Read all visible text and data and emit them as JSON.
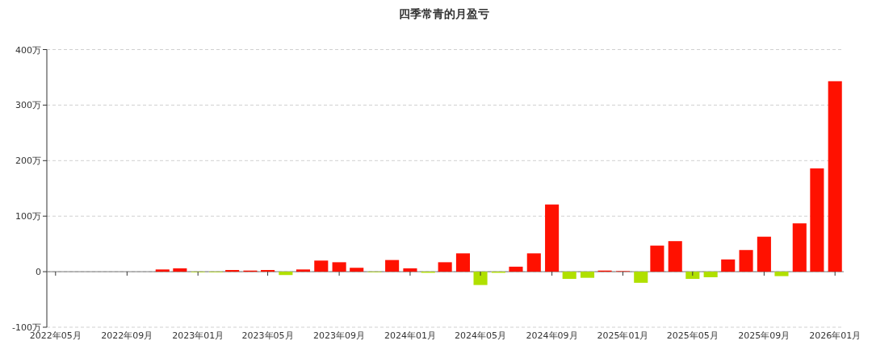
{
  "chart_data": {
    "type": "bar",
    "title": "四季常青的月盈亏",
    "x": [
      "2022-11",
      "2022-12",
      "2023-01",
      "2023-02",
      "2023-03",
      "2023-04",
      "2023-05",
      "2023-06",
      "2023-07",
      "2023-08",
      "2023-09",
      "2023-10",
      "2023-11",
      "2023-12",
      "2024-01",
      "2024-02",
      "2024-03",
      "2024-04",
      "2024-05",
      "2024-06",
      "2024-07",
      "2024-08",
      "2024-09",
      "2024-10",
      "2024-11",
      "2024-12",
      "2025-01",
      "2025-02",
      "2025-03",
      "2025-04",
      "2025-05",
      "2025-06",
      "2025-07",
      "2025-08",
      "2025-09",
      "2025-10",
      "2025-11",
      "2025-12",
      "2026-01"
    ],
    "values": [
      4,
      6,
      -1,
      -1,
      3,
      2,
      3,
      -6,
      4,
      20,
      17,
      7,
      -1,
      21,
      6,
      -2,
      17,
      33,
      -24,
      -2,
      9,
      33,
      121,
      -13,
      -11,
      2,
      1,
      -20,
      47,
      55,
      -13,
      -10,
      22,
      39,
      63,
      -8,
      87,
      186,
      343
    ],
    "colors": [
      "#ff1100",
      "#ff1100",
      "#b0e000",
      "#b0e000",
      "#ff1100",
      "#ff1100",
      "#ff1100",
      "#b0e000",
      "#ff1100",
      "#ff1100",
      "#ff1100",
      "#ff1100",
      "#b0e000",
      "#ff1100",
      "#ff1100",
      "#b0e000",
      "#ff1100",
      "#ff1100",
      "#b0e000",
      "#b0e000",
      "#ff1100",
      "#ff1100",
      "#ff1100",
      "#b0e000",
      "#b0e000",
      "#ff1100",
      "#ff1100",
      "#b0e000",
      "#ff1100",
      "#ff1100",
      "#b0e000",
      "#b0e000",
      "#ff1100",
      "#ff1100",
      "#ff1100",
      "#b0e000",
      "#ff1100",
      "#ff1100",
      "#ff1100"
    ],
    "xlim": [
      "2022-04-16",
      "2026-01-16"
    ],
    "xticks": [
      {
        "value": "2022-05",
        "label": "2022年05月"
      },
      {
        "value": "2022-09",
        "label": "2022年09月"
      },
      {
        "value": "2023-01",
        "label": "2023年01月"
      },
      {
        "value": "2023-05",
        "label": "2023年05月"
      },
      {
        "value": "2023-09",
        "label": "2023年09月"
      },
      {
        "value": "2024-01",
        "label": "2024年01月"
      },
      {
        "value": "2024-05",
        "label": "2024年05月"
      },
      {
        "value": "2024-09",
        "label": "2024年09月"
      },
      {
        "value": "2025-01",
        "label": "2025年01月"
      },
      {
        "value": "2025-05",
        "label": "2025年05月"
      },
      {
        "value": "2025-09",
        "label": "2025年09月"
      },
      {
        "value": "2026-01",
        "label": "2026年01月"
      }
    ],
    "ylim": [
      -100,
      400
    ],
    "yticks": [
      {
        "value": -100,
        "label": "-100万"
      },
      {
        "value": 0,
        "label": "0"
      },
      {
        "value": 100,
        "label": "100万"
      },
      {
        "value": 200,
        "label": "200万"
      },
      {
        "value": 300,
        "label": "300万"
      },
      {
        "value": 400,
        "label": "400万"
      }
    ],
    "grid": "y"
  }
}
